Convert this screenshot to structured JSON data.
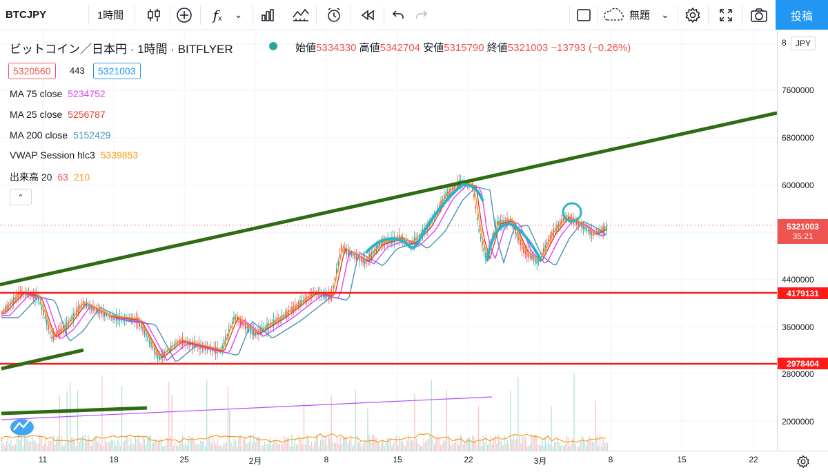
{
  "toolbar": {
    "symbol": "BTCJPY",
    "interval": "1時間",
    "fx_label": "f",
    "fx_sub": "x",
    "chevron": "⌄",
    "layout_name": "無題",
    "post_label": "投稿",
    "icons": [
      "candles-icon",
      "add-compare-icon",
      "indicators-icon",
      "bar-chart-icon",
      "templates-icon",
      "alert-icon",
      "replay-icon",
      "undo-icon",
      "redo-icon",
      "fullscreen-icon",
      "cloud-icon",
      "settings-icon",
      "fullscreen-expand-icon",
      "camera-icon"
    ]
  },
  "legend": {
    "title": "ビットコイン／日本円 · 1時間 · BITFLYER",
    "open_label": "始値",
    "open": "5334330",
    "high_label": "高値",
    "high": "5342704",
    "low_label": "安値",
    "low": "5315790",
    "close_label": "終値",
    "close": "5321003",
    "change": "−13793 (−0.26%)",
    "bid": "5320560",
    "spread": "443",
    "ask": "5321003",
    "ma75_label": "MA 75 close",
    "ma75": "5234752",
    "ma25_label": "MA 25 close",
    "ma25": "5256787",
    "ma200_label": "MA 200 close",
    "ma200": "5152429",
    "vwap_label": "VWAP Session hlc3",
    "vwap": "5339853",
    "vol_label": "出来高 20",
    "vol_v1": "63",
    "vol_v2": "210",
    "collapse": "⌃"
  },
  "price_scale": {
    "unit": "JPY",
    "top_partial": "8",
    "ticks": [
      "7600000",
      "6800000",
      "6000000",
      "4400000",
      "3600000",
      "2800000",
      "2000000"
    ],
    "current_price": "5321003",
    "countdown": "35:21",
    "level_upper": "4179131",
    "level_lower": "2978404"
  },
  "time_axis": {
    "labels": [
      "11",
      "18",
      "25",
      "2月",
      "8",
      "15",
      "22",
      "3月",
      "8",
      "15",
      "22"
    ]
  },
  "colors": {
    "accent": "#2196f3",
    "ma75": "#e040fb",
    "ma25": "#e53935",
    "ma200": "#4a90b8",
    "vwap": "#f59c1a",
    "trend_green": "#2e6b12",
    "level_red": "#ff1a1a",
    "annot_cyan": "#26b5c6",
    "up": "#26a69a",
    "down": "#ef5350",
    "current_price_bg": "#ef5350"
  }
}
